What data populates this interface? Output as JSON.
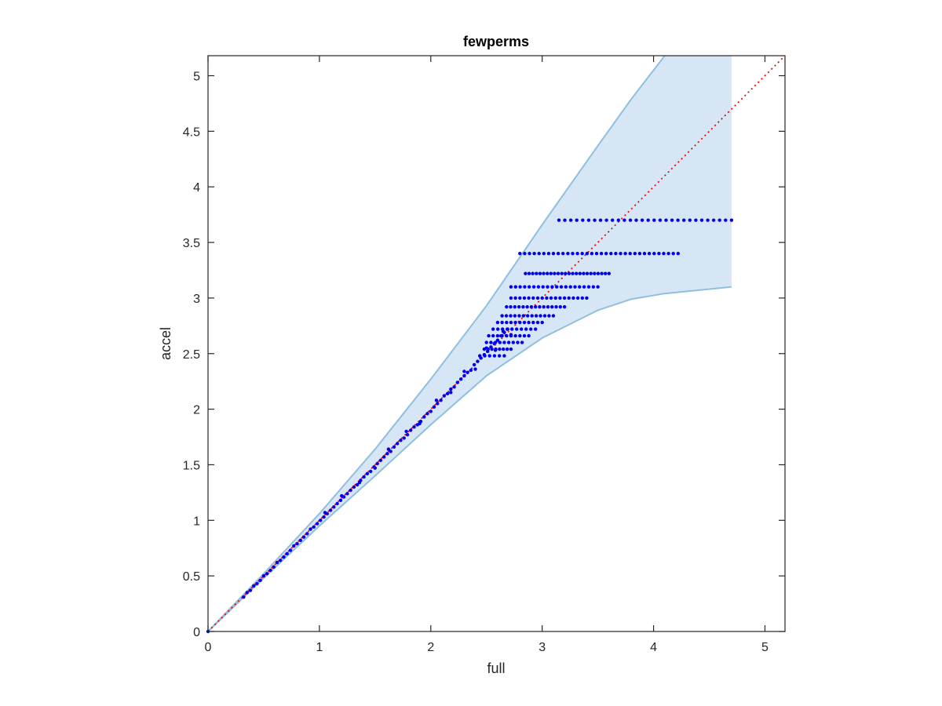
{
  "chart_data": {
    "type": "scatter",
    "title": "fewperms",
    "xlabel": "full",
    "ylabel": "accel",
    "xlim": [
      0,
      5.18
    ],
    "ylim": [
      0,
      5.18
    ],
    "xticks": [
      "0",
      "1",
      "2",
      "3",
      "4",
      "5"
    ],
    "yticks": [
      "0",
      "0.5",
      "1",
      "1.5",
      "2",
      "2.5",
      "3",
      "3.5",
      "4",
      "4.5",
      "5"
    ],
    "grid": false,
    "colors": {
      "points": "#0000ee",
      "band_fill": "#d6e6f4",
      "band_edge": "#8fbfe0",
      "reference_line": "#ff0000",
      "axes": "#262626"
    },
    "band": {
      "description_x": [
        0,
        0.5,
        1.0,
        1.5,
        2.0,
        2.5,
        3.0,
        3.5,
        3.8,
        4.1,
        4.7
      ],
      "upper": [
        0,
        0.52,
        1.06,
        1.64,
        2.27,
        2.93,
        3.66,
        4.37,
        4.79,
        5.18,
        5.18
      ],
      "lower": [
        0,
        0.48,
        0.95,
        1.4,
        1.86,
        2.3,
        2.64,
        2.89,
        2.99,
        3.04,
        3.1
      ]
    },
    "reference_line": {
      "x": [
        0,
        5.18
      ],
      "y": [
        0,
        5.18
      ],
      "style": "dotted"
    },
    "series": [
      {
        "points_diagonal": [
          [
            0,
            0
          ],
          [
            0.32,
            0.31
          ],
          [
            0.35,
            0.35
          ],
          [
            0.38,
            0.37
          ],
          [
            0.41,
            0.41
          ],
          [
            0.44,
            0.43
          ],
          [
            0.47,
            0.46
          ],
          [
            0.5,
            0.5
          ],
          [
            0.53,
            0.52
          ],
          [
            0.56,
            0.55
          ],
          [
            0.59,
            0.58
          ],
          [
            0.62,
            0.62
          ],
          [
            0.65,
            0.64
          ],
          [
            0.68,
            0.67
          ],
          [
            0.71,
            0.7
          ],
          [
            0.74,
            0.73
          ],
          [
            0.77,
            0.77
          ],
          [
            0.8,
            0.79
          ],
          [
            0.83,
            0.82
          ],
          [
            0.86,
            0.85
          ],
          [
            0.89,
            0.88
          ],
          [
            0.92,
            0.92
          ],
          [
            0.95,
            0.94
          ],
          [
            0.98,
            0.97
          ],
          [
            1.01,
            1.0
          ],
          [
            1.04,
            1.03
          ],
          [
            1.07,
            1.06
          ],
          [
            1.1,
            1.09
          ],
          [
            1.13,
            1.12
          ],
          [
            1.16,
            1.15
          ],
          [
            1.19,
            1.18
          ],
          [
            1.22,
            1.21
          ],
          [
            1.25,
            1.24
          ],
          [
            1.28,
            1.27
          ],
          [
            1.31,
            1.3
          ],
          [
            1.34,
            1.32
          ],
          [
            1.37,
            1.36
          ],
          [
            1.4,
            1.39
          ],
          [
            1.43,
            1.42
          ],
          [
            1.46,
            1.44
          ],
          [
            1.49,
            1.48
          ],
          [
            1.52,
            1.51
          ],
          [
            1.55,
            1.54
          ],
          [
            1.58,
            1.57
          ],
          [
            1.61,
            1.6
          ],
          [
            1.64,
            1.62
          ],
          [
            1.67,
            1.66
          ],
          [
            1.7,
            1.69
          ],
          [
            1.73,
            1.72
          ],
          [
            1.76,
            1.74
          ],
          [
            1.79,
            1.77
          ],
          [
            1.82,
            1.81
          ],
          [
            1.85,
            1.84
          ],
          [
            1.88,
            1.86
          ],
          [
            1.91,
            1.89
          ],
          [
            1.94,
            1.93
          ],
          [
            1.97,
            1.96
          ],
          [
            2.0,
            1.98
          ],
          [
            2.03,
            2.02
          ],
          [
            2.06,
            2.05
          ],
          [
            2.09,
            2.08
          ],
          [
            2.12,
            2.12
          ],
          [
            2.15,
            2.14
          ],
          [
            2.18,
            2.18
          ],
          [
            2.21,
            2.2
          ],
          [
            2.24,
            2.24
          ],
          [
            2.27,
            2.27
          ],
          [
            2.3,
            2.3
          ],
          [
            2.33,
            2.33
          ],
          [
            2.36,
            2.35
          ],
          [
            2.39,
            2.4
          ],
          [
            2.42,
            2.43
          ],
          [
            2.45,
            2.46
          ],
          [
            2.48,
            2.49
          ],
          [
            2.51,
            2.52
          ],
          [
            2.54,
            2.56
          ],
          [
            2.57,
            2.59
          ],
          [
            2.6,
            2.62
          ],
          [
            2.63,
            2.66
          ],
          [
            2.66,
            2.69
          ],
          [
            2.69,
            2.72
          ],
          [
            1.05,
            1.07
          ],
          [
            1.2,
            1.22
          ],
          [
            1.36,
            1.34
          ],
          [
            1.5,
            1.47
          ],
          [
            1.62,
            1.64
          ],
          [
            1.78,
            1.8
          ],
          [
            1.9,
            1.87
          ],
          [
            2.05,
            2.08
          ],
          [
            2.18,
            2.15
          ],
          [
            2.3,
            2.34
          ],
          [
            2.4,
            2.36
          ],
          [
            2.5,
            2.55
          ],
          [
            2.58,
            2.53
          ],
          [
            2.65,
            2.7
          ],
          [
            2.72,
            2.67
          ]
        ],
        "points_rows": [
          {
            "y": 3.7,
            "x_from": 3.15,
            "x_to": 4.7,
            "count": 30
          },
          {
            "y": 3.4,
            "x_from": 2.8,
            "x_to": 4.22,
            "count": 34
          },
          {
            "y": 3.22,
            "x_from": 2.85,
            "x_to": 3.6,
            "count": 24
          },
          {
            "y": 3.1,
            "x_from": 2.72,
            "x_to": 3.5,
            "count": 20
          },
          {
            "y": 3.0,
            "x_from": 2.72,
            "x_to": 3.4,
            "count": 18
          },
          {
            "y": 2.92,
            "x_from": 2.68,
            "x_to": 3.2,
            "count": 15
          },
          {
            "y": 2.84,
            "x_from": 2.64,
            "x_to": 3.1,
            "count": 13
          },
          {
            "y": 2.78,
            "x_from": 2.6,
            "x_to": 3.0,
            "count": 11
          },
          {
            "y": 2.72,
            "x_from": 2.56,
            "x_to": 2.94,
            "count": 10
          },
          {
            "y": 2.66,
            "x_from": 2.52,
            "x_to": 2.88,
            "count": 10
          },
          {
            "y": 2.6,
            "x_from": 2.5,
            "x_to": 2.82,
            "count": 9
          },
          {
            "y": 2.54,
            "x_from": 2.48,
            "x_to": 2.72,
            "count": 8
          },
          {
            "y": 2.48,
            "x_from": 2.44,
            "x_to": 2.66,
            "count": 6
          }
        ]
      }
    ]
  }
}
